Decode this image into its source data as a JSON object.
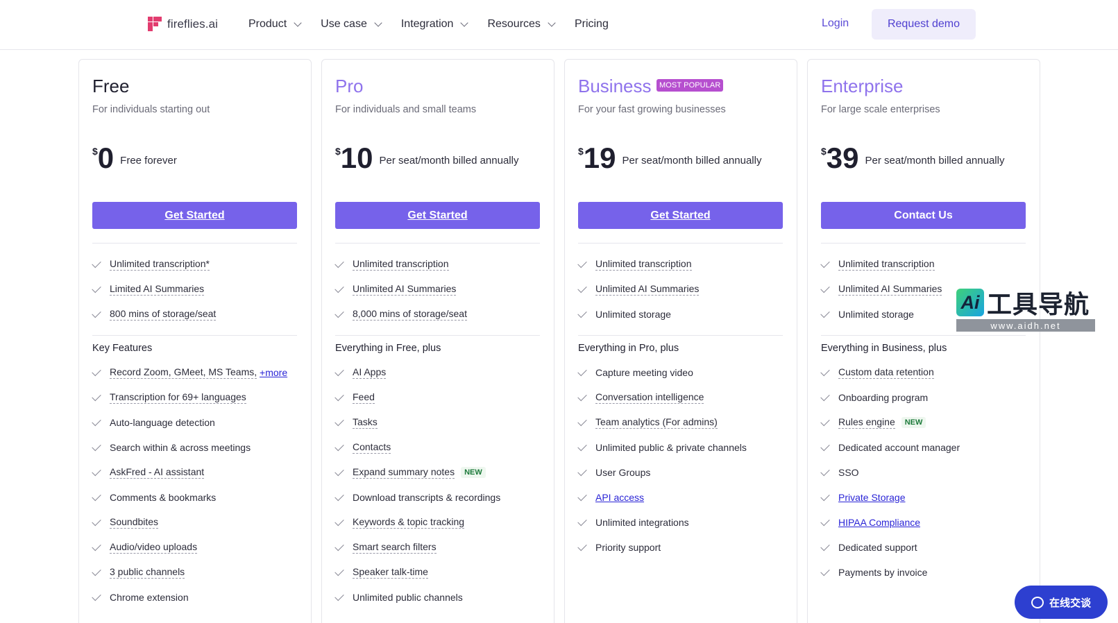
{
  "header": {
    "logo_text": "fireflies.ai",
    "nav": [
      {
        "label": "Product",
        "has_menu": true
      },
      {
        "label": "Use case",
        "has_menu": true
      },
      {
        "label": "Integration",
        "has_menu": true
      },
      {
        "label": "Resources",
        "has_menu": true
      },
      {
        "label": "Pricing",
        "has_menu": false
      }
    ],
    "login": "Login",
    "request_demo": "Request demo"
  },
  "plans": [
    {
      "name": "Free",
      "subtitle": "For individuals starting out",
      "currency": "$",
      "price": "0",
      "period": "Free forever",
      "cta": "Get Started",
      "basics": [
        "Unlimited transcription*",
        "Limited AI Summaries",
        "800 mins of storage/seat"
      ],
      "section_title": "Key Features",
      "features": [
        {
          "text": "Record Zoom, GMeet, MS Teams,",
          "link": "+more"
        },
        {
          "text": "Transcription for 69+ languages"
        },
        {
          "text": "Auto-language detection"
        },
        {
          "text": "Search within & across meetings"
        },
        {
          "text": "AskFred - AI assistant"
        },
        {
          "text": "Comments & bookmarks"
        },
        {
          "text": "Soundbites"
        },
        {
          "text": "Audio/video uploads"
        },
        {
          "text": "3 public channels"
        },
        {
          "text": "Chrome extension"
        }
      ]
    },
    {
      "name": "Pro",
      "subtitle": "For individuals and small teams",
      "currency": "$",
      "price": "10",
      "period": "Per seat/month billed annually",
      "cta": "Get Started",
      "basics": [
        "Unlimited transcription",
        "Unlimited AI Summaries",
        "8,000 mins of storage/seat"
      ],
      "section_title": "Everything in Free, plus",
      "features": [
        {
          "text": "AI Apps"
        },
        {
          "text": "Feed"
        },
        {
          "text": "Tasks"
        },
        {
          "text": "Contacts"
        },
        {
          "text": "Expand summary notes",
          "badge": "NEW"
        },
        {
          "text": "Download transcripts & recordings"
        },
        {
          "text": "Keywords & topic tracking"
        },
        {
          "text": "Smart search filters"
        },
        {
          "text": "Speaker talk-time"
        },
        {
          "text": "Unlimited public channels"
        }
      ]
    },
    {
      "name": "Business",
      "badge": "MOST POPULAR",
      "subtitle": "For your fast growing businesses",
      "currency": "$",
      "price": "19",
      "period": "Per seat/month billed annually",
      "cta": "Get Started",
      "basics": [
        "Unlimited transcription",
        "Unlimited AI Summaries",
        "Unlimited storage"
      ],
      "section_title": "Everything in Pro, plus",
      "features": [
        {
          "text": "Capture meeting video"
        },
        {
          "text": "Conversation intelligence"
        },
        {
          "text": "Team analytics (For admins)"
        },
        {
          "text": "Unlimited public & private channels"
        },
        {
          "text": "User Groups"
        },
        {
          "text": "API access"
        },
        {
          "text": "Unlimited integrations"
        },
        {
          "text": "Priority support"
        }
      ]
    },
    {
      "name": "Enterprise",
      "subtitle": "For large scale enterprises",
      "currency": "$",
      "price": "39",
      "period": "Per seat/month billed annually",
      "cta": "Contact Us",
      "basics": [
        "Unlimited transcription",
        "Unlimited AI Summaries",
        "Unlimited storage"
      ],
      "section_title": "Everything in Business, plus",
      "features": [
        {
          "text": "Custom data retention"
        },
        {
          "text": "Onboarding program"
        },
        {
          "text": "Rules engine",
          "badge": "NEW"
        },
        {
          "text": "Dedicated account manager"
        },
        {
          "text": "SSO"
        },
        {
          "text": "Private Storage"
        },
        {
          "text": "HIPAA Compliance"
        },
        {
          "text": "Dedicated support"
        },
        {
          "text": "Payments by invoice"
        }
      ]
    }
  ],
  "watermark": {
    "ai": "Ai",
    "text": "工具导航",
    "url": "www.aidh.net"
  },
  "chat_widget": {
    "label": "在线交谈"
  },
  "colors": {
    "accent": "#7662ea",
    "pro_title": "#8f73ec",
    "badge": "#b64fcf",
    "link": "#2a24d6"
  }
}
